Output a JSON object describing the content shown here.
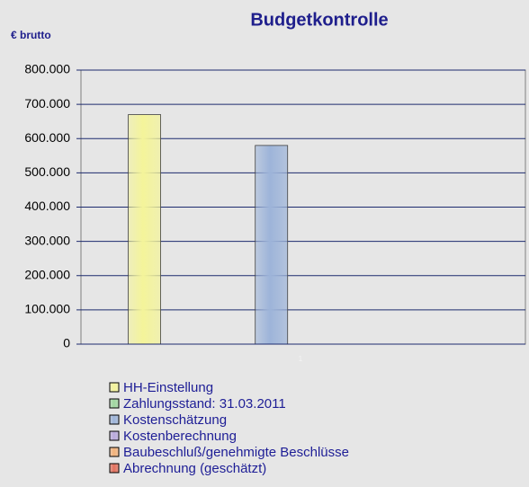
{
  "chart_data": {
    "type": "bar",
    "title": "Budgetkontrolle",
    "y_label": "€ brutto",
    "categories": [
      "1"
    ],
    "series": [
      {
        "name": "HH-Einstellung",
        "color": "#f4f49a",
        "values": [
          670000
        ]
      },
      {
        "name": "Zahlungsstand: 31.03.2011",
        "color": "#9fd69f",
        "values": [
          null
        ]
      },
      {
        "name": "Kostenschätzung",
        "color": "#9db4d9",
        "values": [
          580000
        ]
      },
      {
        "name": "Kostenberechnung",
        "color": "#b9a9dc",
        "values": [
          null
        ]
      },
      {
        "name": "Baubeschluß/genehmigte Beschlüsse",
        "color": "#f2b27a",
        "values": [
          null
        ]
      },
      {
        "name": "Abrechnung (geschätzt)",
        "color": "#e2705c",
        "values": [
          null
        ]
      }
    ],
    "ylim": [
      0,
      800000
    ],
    "yticks": [
      0,
      {
        "value": 100000,
        "label": "100.000"
      },
      {
        "value": 200000,
        "label": "200.000"
      },
      {
        "value": 300000,
        "label": "300.000"
      },
      {
        "value": 400000,
        "label": "400.000"
      },
      {
        "value": 500000,
        "label": "500.000"
      },
      {
        "value": 600000,
        "label": "600.000"
      },
      {
        "value": 700000,
        "label": "700.000"
      },
      {
        "value": 800000,
        "label": "800.000"
      }
    ],
    "grid": true,
    "legend": "bottom"
  }
}
